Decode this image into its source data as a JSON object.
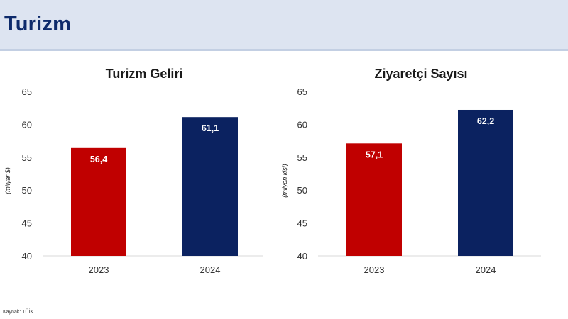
{
  "header": {
    "title": "Turizm"
  },
  "source": "Kaynak: TÜİK",
  "colors": {
    "bar_2023": "#c00000",
    "bar_2024": "#0b2260",
    "header_bg": "#dde4f1",
    "title": "#0d2a6b"
  },
  "chart_data": [
    {
      "type": "bar",
      "title": "Turizm Geliri",
      "ylabel": "(milyar $)",
      "xlabel": "",
      "categories": [
        "2023",
        "2024"
      ],
      "values": [
        56.4,
        61.1
      ],
      "data_labels": [
        "56,4",
        "61,1"
      ],
      "ylim": [
        40,
        65
      ],
      "yticks": [
        "40",
        "45",
        "50",
        "55",
        "60",
        "65"
      ],
      "grid": false,
      "legend": "none"
    },
    {
      "type": "bar",
      "title": "Ziyaretçi Sayısı",
      "ylabel": "(milyon kişi)",
      "xlabel": "",
      "categories": [
        "2023",
        "2024"
      ],
      "values": [
        57.1,
        62.2
      ],
      "data_labels": [
        "57,1",
        "62,2"
      ],
      "ylim": [
        40,
        65
      ],
      "yticks": [
        "40",
        "45",
        "50",
        "55",
        "60",
        "65"
      ],
      "grid": false,
      "legend": "none"
    }
  ]
}
